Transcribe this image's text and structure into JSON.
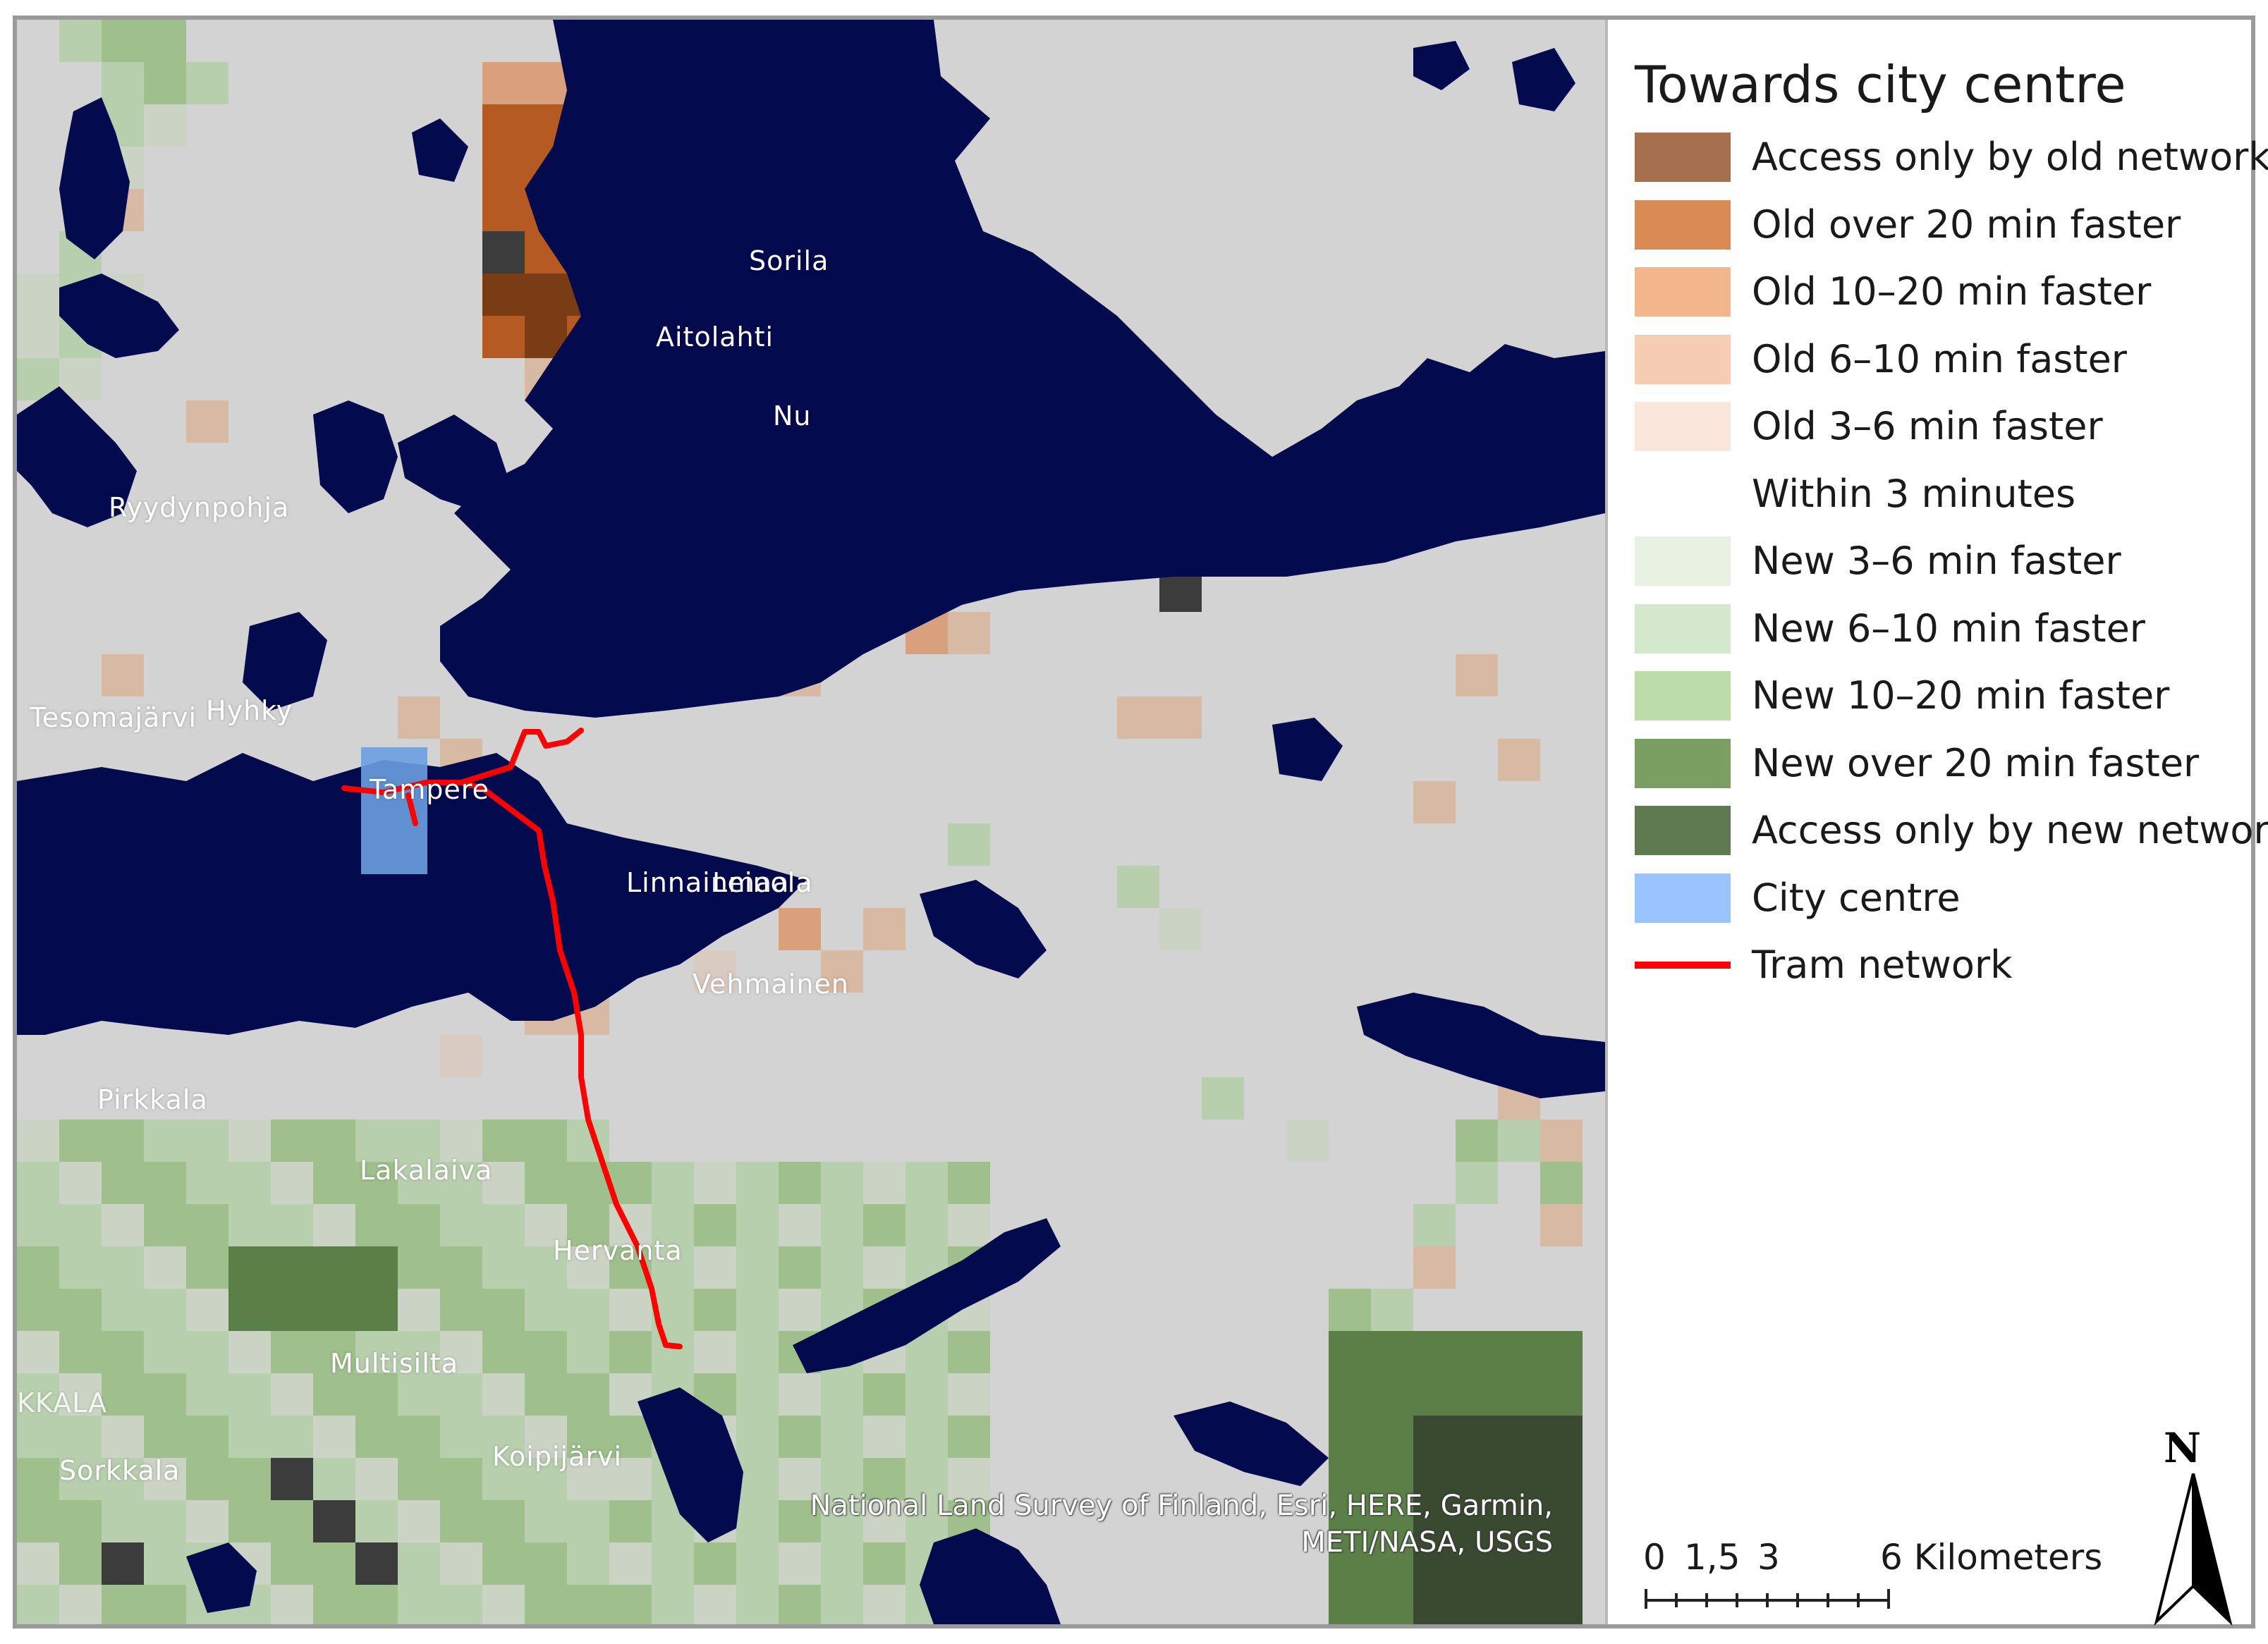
{
  "legend": {
    "title": "Towards city centre",
    "items": [
      {
        "label": "Access only by old network",
        "color": "#a66f4e"
      },
      {
        "label": "Old over 20 min faster",
        "color": "#d98a55"
      },
      {
        "label": "Old 10–20 min faster",
        "color": "#f4b68d"
      },
      {
        "label": "Old 6–10 min faster",
        "color": "#f6cdb3"
      },
      {
        "label": "Old 3–6 min faster",
        "color": "#fae6da"
      },
      {
        "label": "Within 3 minutes",
        "color": "#ffffff"
      },
      {
        "label": "New 3–6 min faster",
        "color": "#e8f1e2"
      },
      {
        "label": "New 6–10 min faster",
        "color": "#d4e8cc"
      },
      {
        "label": "New 10–20 min faster",
        "color": "#bcdcaa"
      },
      {
        "label": "New over 20 min faster",
        "color": "#7a9f62"
      },
      {
        "label": "Access only by new network",
        "color": "#5f7a51"
      },
      {
        "label": "City centre",
        "color": "#9ac4ff"
      },
      {
        "label": "Tram network",
        "color": "#ff0000"
      }
    ]
  },
  "places": [
    "Sorila",
    "Aitolahti",
    "Nu",
    "Ryydynpohja",
    "Tesomajärvi",
    "Hyhky",
    "Tampere",
    "Linnainmaa",
    "Leinola",
    "Vehmainen",
    "Pirkkala",
    "Lakalaiva",
    "Hervanta",
    "Multisilta",
    "Koipijärvi",
    "Sorkkala",
    "KKALA"
  ],
  "attribution": {
    "line1": "National Land Survey of Finland, Esri, HERE, Garmin,",
    "line2": "METI/NASA, USGS"
  },
  "scale_bar": {
    "labels": [
      "0",
      "1,5",
      "3",
      "6 Kilometers"
    ]
  },
  "north_arrow": {
    "letter": "N",
    "icon": "north-arrow-icon"
  },
  "colors": {
    "water": "#040a4e",
    "land": "#d3d3d3",
    "tram": "#ff0000",
    "city_centre": "#6a9fe0"
  }
}
